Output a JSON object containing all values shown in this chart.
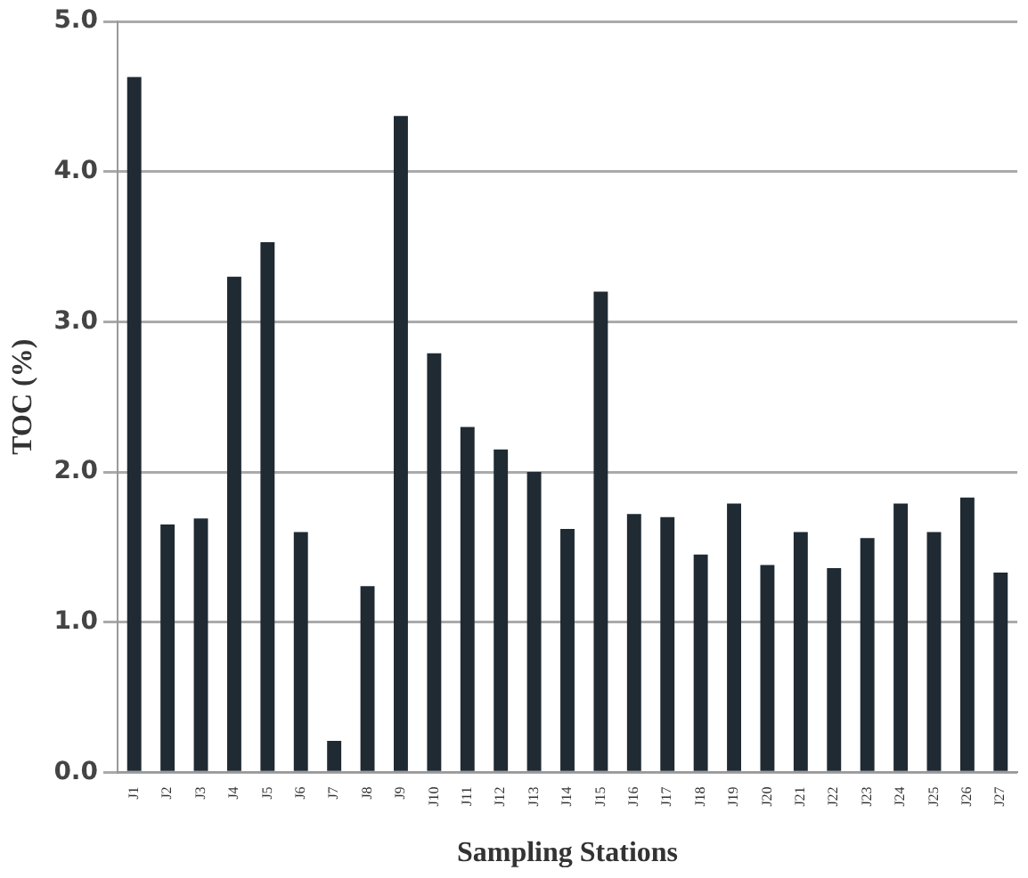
{
  "chart_data": {
    "type": "bar",
    "xlabel": "Sampling Stations",
    "ylabel": "TOC (%)",
    "categories": [
      "J1",
      "J2",
      "J3",
      "J4",
      "J5",
      "J6",
      "J7",
      "J8",
      "J9",
      "J10",
      "J11",
      "J12",
      "J13",
      "J14",
      "J15",
      "J16",
      "J17",
      "J18",
      "J19",
      "J20",
      "J21",
      "J22",
      "J23",
      "J24",
      "J25",
      "J26",
      "J27"
    ],
    "values": [
      4.63,
      1.65,
      1.69,
      3.3,
      3.53,
      1.6,
      0.21,
      1.24,
      4.37,
      2.79,
      2.3,
      2.15,
      2.0,
      1.62,
      3.2,
      1.72,
      1.7,
      1.45,
      1.79,
      1.38,
      1.6,
      1.36,
      1.56,
      1.79,
      1.6,
      1.83,
      1.33
    ],
    "color": "#1f2a33",
    "ylim": [
      0,
      5
    ],
    "yticks": [
      {
        "value": 0,
        "label": "0.0"
      },
      {
        "value": 1,
        "label": "1.0"
      },
      {
        "value": 2,
        "label": "2.0"
      },
      {
        "value": 3,
        "label": "3.0"
      },
      {
        "value": 4,
        "label": "4.0"
      },
      {
        "value": 5,
        "label": "5.0"
      }
    ],
    "grid": "y"
  }
}
